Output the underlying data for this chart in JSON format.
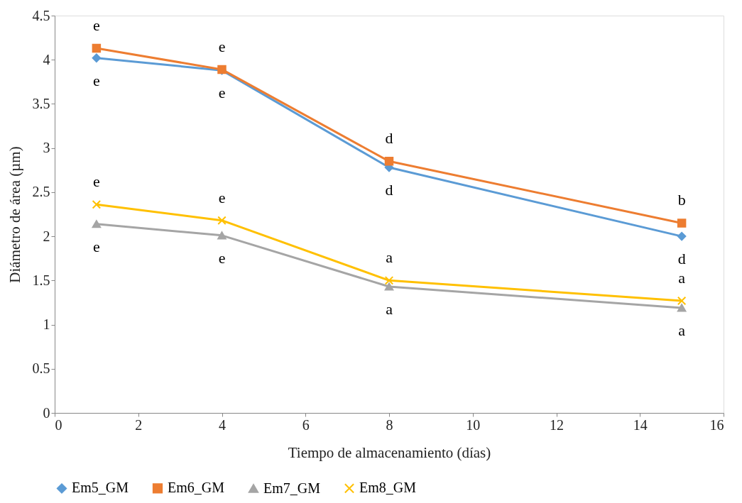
{
  "chart_data": {
    "type": "line",
    "xlabel": "Tiempo de almacenamiento (días)",
    "ylabel": "Diámetro de área (µm)",
    "x": [
      1,
      4,
      8,
      15
    ],
    "xlim": [
      0,
      16
    ],
    "xticks": [
      0,
      2,
      4,
      6,
      8,
      10,
      12,
      14,
      16
    ],
    "ylim": [
      0,
      4.5
    ],
    "yticks": [
      0,
      0.5,
      1,
      1.5,
      2,
      2.5,
      3,
      3.5,
      4,
      4.5
    ],
    "grid": false,
    "legend": "bottom",
    "series": [
      {
        "name": "Em5_GM",
        "color": "#5b9bd5",
        "marker": "diamond",
        "values": [
          4.02,
          3.88,
          2.78,
          2.0
        ],
        "value_labels": [
          "e",
          "e",
          "d",
          "d"
        ]
      },
      {
        "name": "Em6_GM",
        "color": "#ed7d31",
        "marker": "square",
        "values": [
          4.13,
          3.89,
          2.85,
          2.15
        ],
        "value_labels": [
          "e",
          "e",
          "d",
          "b"
        ]
      },
      {
        "name": "Em7_GM",
        "color": "#a5a5a5",
        "marker": "triangle",
        "values": [
          2.14,
          2.01,
          1.43,
          1.19
        ],
        "value_labels": [
          "e",
          "e",
          "a",
          "a"
        ]
      },
      {
        "name": "Em8_GM",
        "color": "#ffc000",
        "marker": "cross",
        "values": [
          2.36,
          2.18,
          1.5,
          1.27
        ],
        "value_labels": [
          "e",
          "e",
          "a",
          "a"
        ]
      }
    ]
  }
}
